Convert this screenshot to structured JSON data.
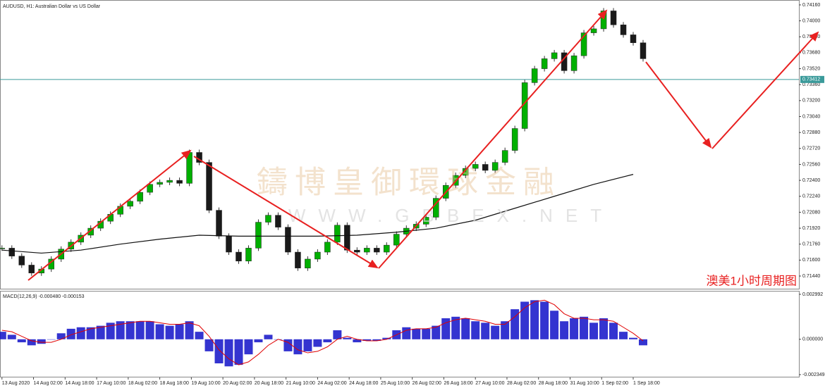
{
  "chart_data": {
    "type": "candlestick",
    "title": "AUDUSD, H1:  Australian Dollar vs US Dollar",
    "annotation": "澳美1小时周期图",
    "watermark": "鑄博皇御環球金融",
    "watermark_url": "WWW.GBBEX.NET",
    "up_color": "#00b000",
    "down_color": "#1a1a1a",
    "xlim": [
      -1,
      404
    ],
    "ylim": [
      0.7132,
      0.74195
    ],
    "xticks": [
      {
        "value": 0,
        "label": "13 Aug 2020"
      },
      {
        "value": 16,
        "label": "14 Aug 02:00"
      },
      {
        "value": 32,
        "label": "14 Aug 18:00"
      },
      {
        "value": 48,
        "label": "17 Aug 10:00"
      },
      {
        "value": 64,
        "label": "18 Aug 02:00"
      },
      {
        "value": 80,
        "label": "18 Aug 18:00"
      },
      {
        "value": 96,
        "label": "19 Aug 10:00"
      },
      {
        "value": 112,
        "label": "20 Aug 02:00"
      },
      {
        "value": 128,
        "label": "20 Aug 18:00"
      },
      {
        "value": 144,
        "label": "21 Aug 10:00"
      },
      {
        "value": 160,
        "label": "24 Aug 02:00"
      },
      {
        "value": 176,
        "label": "24 Aug 18:00"
      },
      {
        "value": 192,
        "label": "25 Aug 10:00"
      },
      {
        "value": 208,
        "label": "26 Aug 02:00"
      },
      {
        "value": 224,
        "label": "26 Aug 18:00"
      },
      {
        "value": 240,
        "label": "27 Aug 10:00"
      },
      {
        "value": 256,
        "label": "28 Aug 02:00"
      },
      {
        "value": 272,
        "label": "28 Aug 18:00"
      },
      {
        "value": 288,
        "label": "31 Aug 10:00"
      },
      {
        "value": 304,
        "label": "1 Sep 02:00"
      },
      {
        "value": 320,
        "label": "1 Sep 18:00"
      }
    ],
    "yticks": [
      {
        "value": 0.7416,
        "label": "0.74160"
      },
      {
        "value": 0.74,
        "label": "0.74000"
      },
      {
        "value": 0.7384,
        "label": "0.73840"
      },
      {
        "value": 0.7368,
        "label": "0.73680"
      },
      {
        "value": 0.7352,
        "label": "0.73520"
      },
      {
        "value": 0.7336,
        "label": "0.73360"
      },
      {
        "value": 0.732,
        "label": "0.73200"
      },
      {
        "value": 0.7304,
        "label": "0.73040"
      },
      {
        "value": 0.7288,
        "label": "0.72880"
      },
      {
        "value": 0.7272,
        "label": "0.72720"
      },
      {
        "value": 0.7256,
        "label": "0.72560"
      },
      {
        "value": 0.724,
        "label": "0.72400"
      },
      {
        "value": 0.7224,
        "label": "0.72240"
      },
      {
        "value": 0.7208,
        "label": "0.72080"
      },
      {
        "value": 0.7192,
        "label": "0.71920"
      },
      {
        "value": 0.7176,
        "label": "0.71760"
      },
      {
        "value": 0.716,
        "label": "0.71600"
      },
      {
        "value": 0.7144,
        "label": "0.71440"
      }
    ],
    "last_price": {
      "value": 0.73412,
      "label": "0.73412"
    },
    "candles": {
      "x": [
        0,
        5,
        10,
        15,
        20,
        25,
        30,
        35,
        40,
        45,
        50,
        55,
        60,
        65,
        70,
        75,
        80,
        85,
        90,
        95,
        100,
        105,
        110,
        115,
        120,
        125,
        130,
        135,
        140,
        145,
        150,
        155,
        160,
        165,
        170,
        175,
        180,
        185,
        190,
        195,
        200,
        205,
        210,
        215,
        220,
        225,
        230,
        235,
        240,
        245,
        250,
        255,
        260,
        265,
        270,
        275,
        280,
        285,
        290,
        295,
        300,
        305,
        310,
        315,
        320,
        325
      ],
      "close": [
        0.7172,
        0.7164,
        0.7155,
        0.7147,
        0.7151,
        0.7161,
        0.7171,
        0.7178,
        0.7185,
        0.7192,
        0.7199,
        0.7206,
        0.7214,
        0.7219,
        0.7228,
        0.7236,
        0.7238,
        0.724,
        0.7237,
        0.7268,
        0.7258,
        0.721,
        0.7184,
        0.7168,
        0.7159,
        0.7172,
        0.7198,
        0.7205,
        0.7193,
        0.7168,
        0.7152,
        0.7161,
        0.7168,
        0.7178,
        0.7195,
        0.717,
        0.7168,
        0.7172,
        0.7168,
        0.7175,
        0.7186,
        0.7192,
        0.7196,
        0.7203,
        0.7222,
        0.7235,
        0.7245,
        0.7252,
        0.7256,
        0.725,
        0.7258,
        0.727,
        0.7292,
        0.7338,
        0.7352,
        0.7362,
        0.7368,
        0.735,
        0.7365,
        0.7388,
        0.7392,
        0.741,
        0.7396,
        0.7386,
        0.7378,
        0.7362
      ]
    },
    "moving_average": {
      "color": "#111111",
      "x": [
        0,
        20,
        40,
        60,
        80,
        100,
        120,
        140,
        160,
        180,
        200,
        220,
        240,
        260,
        280,
        300,
        320
      ],
      "values": [
        0.717,
        0.7167,
        0.717,
        0.7176,
        0.7181,
        0.7185,
        0.7184,
        0.7184,
        0.7184,
        0.7185,
        0.7188,
        0.7192,
        0.72,
        0.7212,
        0.7224,
        0.7236,
        0.7246
      ]
    },
    "macd": {
      "title": "MACD(12,26,9) -0.000480 -0.000153",
      "color": "#1010c8",
      "signal_color": "#e00000",
      "ylim": [
        -0.00249,
        0.00313
      ],
      "yticks": [
        0.002992,
        {
          "value": 0,
          "label": "0.000000"
        },
        -0.002349
      ],
      "histogram": [
        0.0005,
        0.0003,
        -0.0002,
        -0.0004,
        -0.0003,
        0,
        0.0004,
        0.0007,
        0.0008,
        0.0008,
        0.0009,
        0.0011,
        0.0012,
        0.0012,
        0.0012,
        0.0012,
        0.001,
        0.0009,
        0.001,
        0.0012,
        0.0005,
        -0.0008,
        -0.0016,
        -0.0018,
        -0.0017,
        -0.001,
        -0.0002,
        0.0003,
        0,
        -0.0008,
        -0.001,
        -0.0008,
        -0.0005,
        -0.0002,
        0.0006,
        0.0001,
        -0.0002,
        -0.0001,
        -0.0001,
        0.0001,
        0.0006,
        0.0008,
        0.0007,
        0.0007,
        0.0009,
        0.0014,
        0.0015,
        0.0014,
        0.0012,
        0.0011,
        0.0009,
        0.0012,
        0.002,
        0.0025,
        0.0026,
        0.0025,
        0.0019,
        0.0012,
        0.0014,
        0.0015,
        0.0011,
        0.0014,
        0.0011,
        0.0005,
        0.0001,
        -0.0004
      ],
      "signal": [
        0.0006,
        0.0005,
        0.0002,
        -0.0001,
        -0.0002,
        -0.0002,
        0,
        0.0003,
        0.0005,
        0.0007,
        0.0008,
        0.0009,
        0.001,
        0.0011,
        0.0012,
        0.0012,
        0.0011,
        0.001,
        0.001,
        0.0011,
        0.0009,
        0.0002,
        -0.0007,
        -0.0013,
        -0.0017,
        -0.0015,
        -0.001,
        -0.0004,
        0,
        -0.0002,
        -0.0007,
        -0.0009,
        -0.0008,
        -0.0005,
        0,
        0.0002,
        0,
        -0.0001,
        -0.0001,
        0,
        0.0003,
        0.0006,
        0.0007,
        0.0007,
        0.0008,
        0.0011,
        0.0013,
        0.0014,
        0.0013,
        0.0012,
        0.001,
        0.001,
        0.0015,
        0.0021,
        0.0025,
        0.0026,
        0.0023,
        0.0017,
        0.0014,
        0.0014,
        0.0013,
        0.0013,
        0.0012,
        0.0008,
        0.0004,
        -0.0001
      ]
    }
  }
}
